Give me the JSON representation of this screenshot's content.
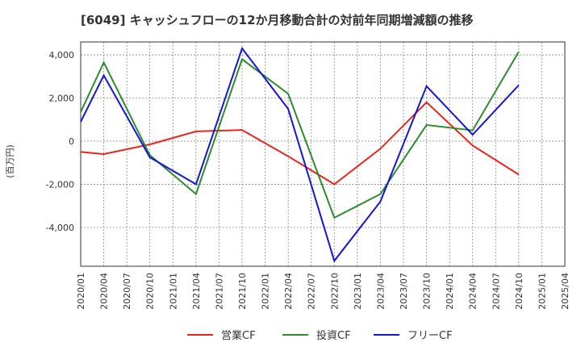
{
  "chart_data": {
    "type": "line",
    "title": "[6049]  キャッシュフローの12か月移動合計の対前年同期増減額の推移",
    "ylabel": "(百万円)",
    "xlabel": "",
    "ylim": [
      -5800,
      4600
    ],
    "yticks": [
      4000,
      2000,
      0,
      -2000,
      -4000
    ],
    "ytick_labels": [
      "4,000",
      "2,000",
      "0",
      "-2,000",
      "-4,000"
    ],
    "x_ticks": [
      "2020/01",
      "2020/04",
      "2020/07",
      "2020/10",
      "2021/01",
      "2021/04",
      "2021/07",
      "2021/10",
      "2022/01",
      "2022/04",
      "2022/07",
      "2022/10",
      "2023/01",
      "2023/04",
      "2023/07",
      "2023/10",
      "2024/01",
      "2024/04",
      "2024/07",
      "2024/10",
      "2025/01",
      "2025/04"
    ],
    "grid": true,
    "legend_position": "bottom",
    "series": [
      {
        "name": "営業CF",
        "color": "#e8251b",
        "points": [
          {
            "x": "2020/01",
            "y": -500
          },
          {
            "x": "2020/04",
            "y": -600
          },
          {
            "x": "2020/10",
            "y": -150
          },
          {
            "x": "2021/04",
            "y": 450
          },
          {
            "x": "2021/10",
            "y": 520
          },
          {
            "x": "2022/04",
            "y": -700
          },
          {
            "x": "2022/10",
            "y": -2000
          },
          {
            "x": "2023/04",
            "y": -350
          },
          {
            "x": "2023/10",
            "y": 1800
          },
          {
            "x": "2024/04",
            "y": -200
          },
          {
            "x": "2024/10",
            "y": -1550
          }
        ]
      },
      {
        "name": "投資CF",
        "color": "#2e8b2e",
        "points": [
          {
            "x": "2020/01",
            "y": 1350
          },
          {
            "x": "2020/04",
            "y": 3650
          },
          {
            "x": "2020/10",
            "y": -650
          },
          {
            "x": "2021/04",
            "y": -2450
          },
          {
            "x": "2021/10",
            "y": 3800
          },
          {
            "x": "2022/04",
            "y": 2200
          },
          {
            "x": "2022/10",
            "y": -3550
          },
          {
            "x": "2023/04",
            "y": -2450
          },
          {
            "x": "2023/10",
            "y": 750
          },
          {
            "x": "2024/04",
            "y": 500
          },
          {
            "x": "2024/10",
            "y": 4150
          }
        ]
      },
      {
        "name": "フリーCF",
        "color": "#1515d8",
        "points": [
          {
            "x": "2020/01",
            "y": 900
          },
          {
            "x": "2020/04",
            "y": 3050
          },
          {
            "x": "2020/10",
            "y": -750
          },
          {
            "x": "2021/04",
            "y": -2000
          },
          {
            "x": "2021/10",
            "y": 4300
          },
          {
            "x": "2022/04",
            "y": 1500
          },
          {
            "x": "2022/10",
            "y": -5550
          },
          {
            "x": "2023/04",
            "y": -2800
          },
          {
            "x": "2023/10",
            "y": 2550
          },
          {
            "x": "2024/04",
            "y": 300
          },
          {
            "x": "2024/10",
            "y": 2600
          }
        ]
      }
    ]
  }
}
